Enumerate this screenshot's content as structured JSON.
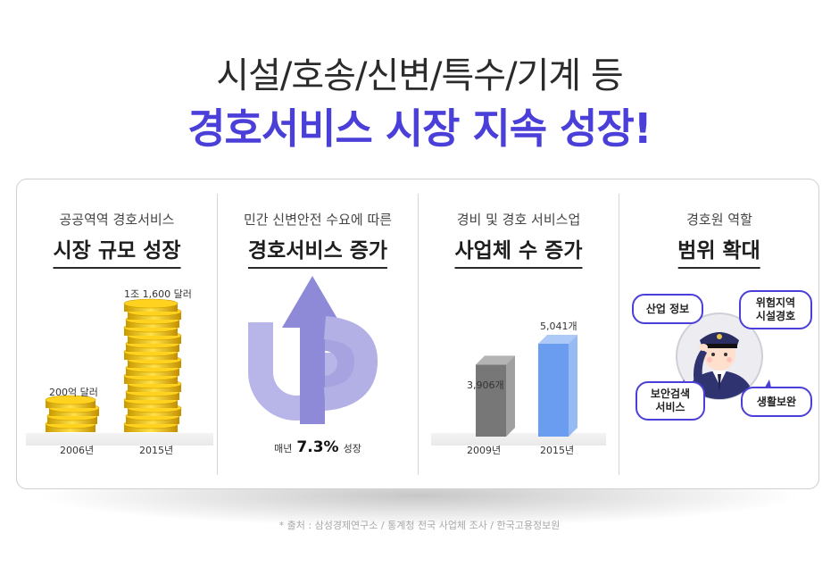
{
  "header": {
    "line1": "시설/호송/신변/특수/기계 등",
    "line2": "경호서비스 시장 지속 성장!"
  },
  "panels": [
    {
      "subtitle": "공공역역 경호서비스",
      "title": "시장 규모 성장",
      "label_small": "200억 달러",
      "label_large": "1조 1,600 달러",
      "year_left": "2006년",
      "year_right": "2015년",
      "icon": "gold-coin-stacks-icon"
    },
    {
      "subtitle": "민간 신변안전 수요에 따른",
      "title": "경호서비스 증가",
      "icon": "up-arrow-icon",
      "growth_prefix": "매년",
      "growth_value": "7.3%",
      "growth_suffix": "성장",
      "color": "#b3b0e6"
    },
    {
      "subtitle": "경비 및 경호 서비스업",
      "title": "사업체 수 증가",
      "bars": [
        {
          "year": "2009년",
          "value_label": "3,906개",
          "value": 3906,
          "color": "#777777"
        },
        {
          "year": "2015년",
          "value_label": "5,041개",
          "value": 5041,
          "color": "#6a9cf0"
        }
      ]
    },
    {
      "subtitle": "경호원 역할",
      "title": "범위 확대",
      "icon": "saluting-guard-icon",
      "bubbles": [
        "산업 정보",
        "위험지역\n시설경호",
        "보안검색\n서비스",
        "생활보완"
      ],
      "accent": "#4b3fd9"
    }
  ],
  "source": "* 출처 : 삼성경제연구소 / 통계청 전국 사업체 조사 / 한국고용정보원"
}
